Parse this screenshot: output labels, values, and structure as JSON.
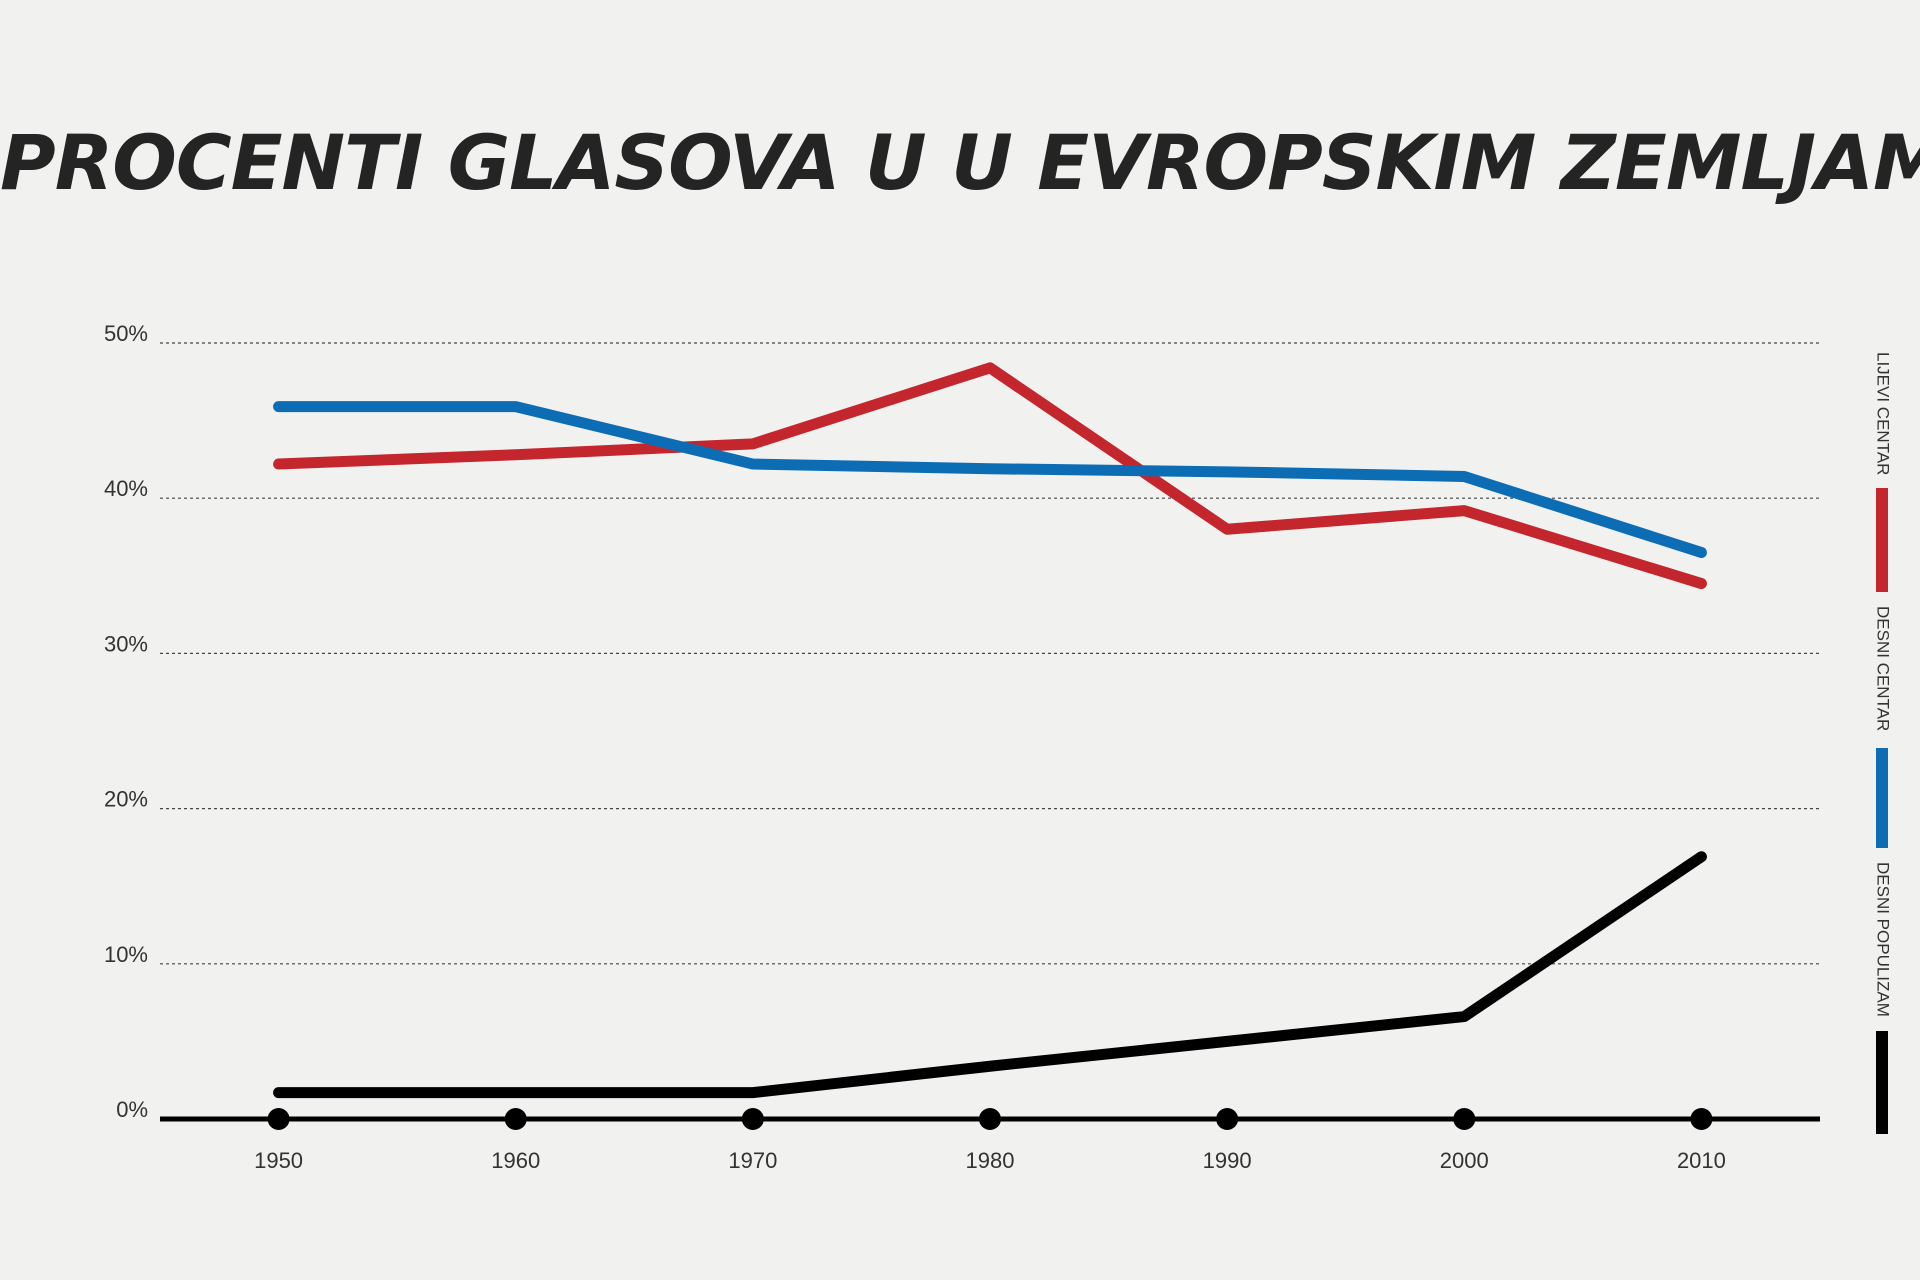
{
  "chart_data": {
    "type": "line",
    "title": "PROCENTI GLASOVA U U EVROPSKIM ZEMLJAMA",
    "xlabel": "",
    "ylabel": "",
    "x": [
      1950,
      1960,
      1970,
      1980,
      1990,
      2000,
      2010
    ],
    "x_tick_labels": [
      "1950",
      "1960",
      "1970",
      "1980",
      "1990",
      "2000",
      "2010"
    ],
    "y_tick_labels": [
      "0%",
      "10%",
      "20%",
      "30%",
      "40%",
      "50%"
    ],
    "y_ticks": [
      0,
      10,
      20,
      30,
      40,
      50
    ],
    "xlim": [
      1945,
      2015
    ],
    "ylim": [
      0,
      50
    ],
    "grid": true,
    "legend_position": "right, vertical",
    "series": [
      {
        "name": "LIJEVI CENTAR",
        "color": "#c4262e",
        "x": [
          1950,
          1960,
          1970,
          1980,
          1990,
          2000,
          2010
        ],
        "values": [
          42.2,
          42.8,
          43.5,
          48.4,
          38.0,
          39.2,
          34.5
        ]
      },
      {
        "name": "DESNI CENTAR",
        "color": "#0c6db4",
        "x": [
          1950,
          1960,
          1970,
          1980,
          1990,
          2000,
          2010
        ],
        "values": [
          45.9,
          45.9,
          42.2,
          41.9,
          41.7,
          41.4,
          36.5
        ]
      },
      {
        "name": "DESNI POPULIZAM",
        "color": "#000000",
        "x": [
          1950,
          1960,
          1970,
          1980,
          1990,
          2000,
          2010
        ],
        "values": [
          1.7,
          1.7,
          1.7,
          3.4,
          5.0,
          6.6,
          16.9
        ]
      }
    ]
  }
}
